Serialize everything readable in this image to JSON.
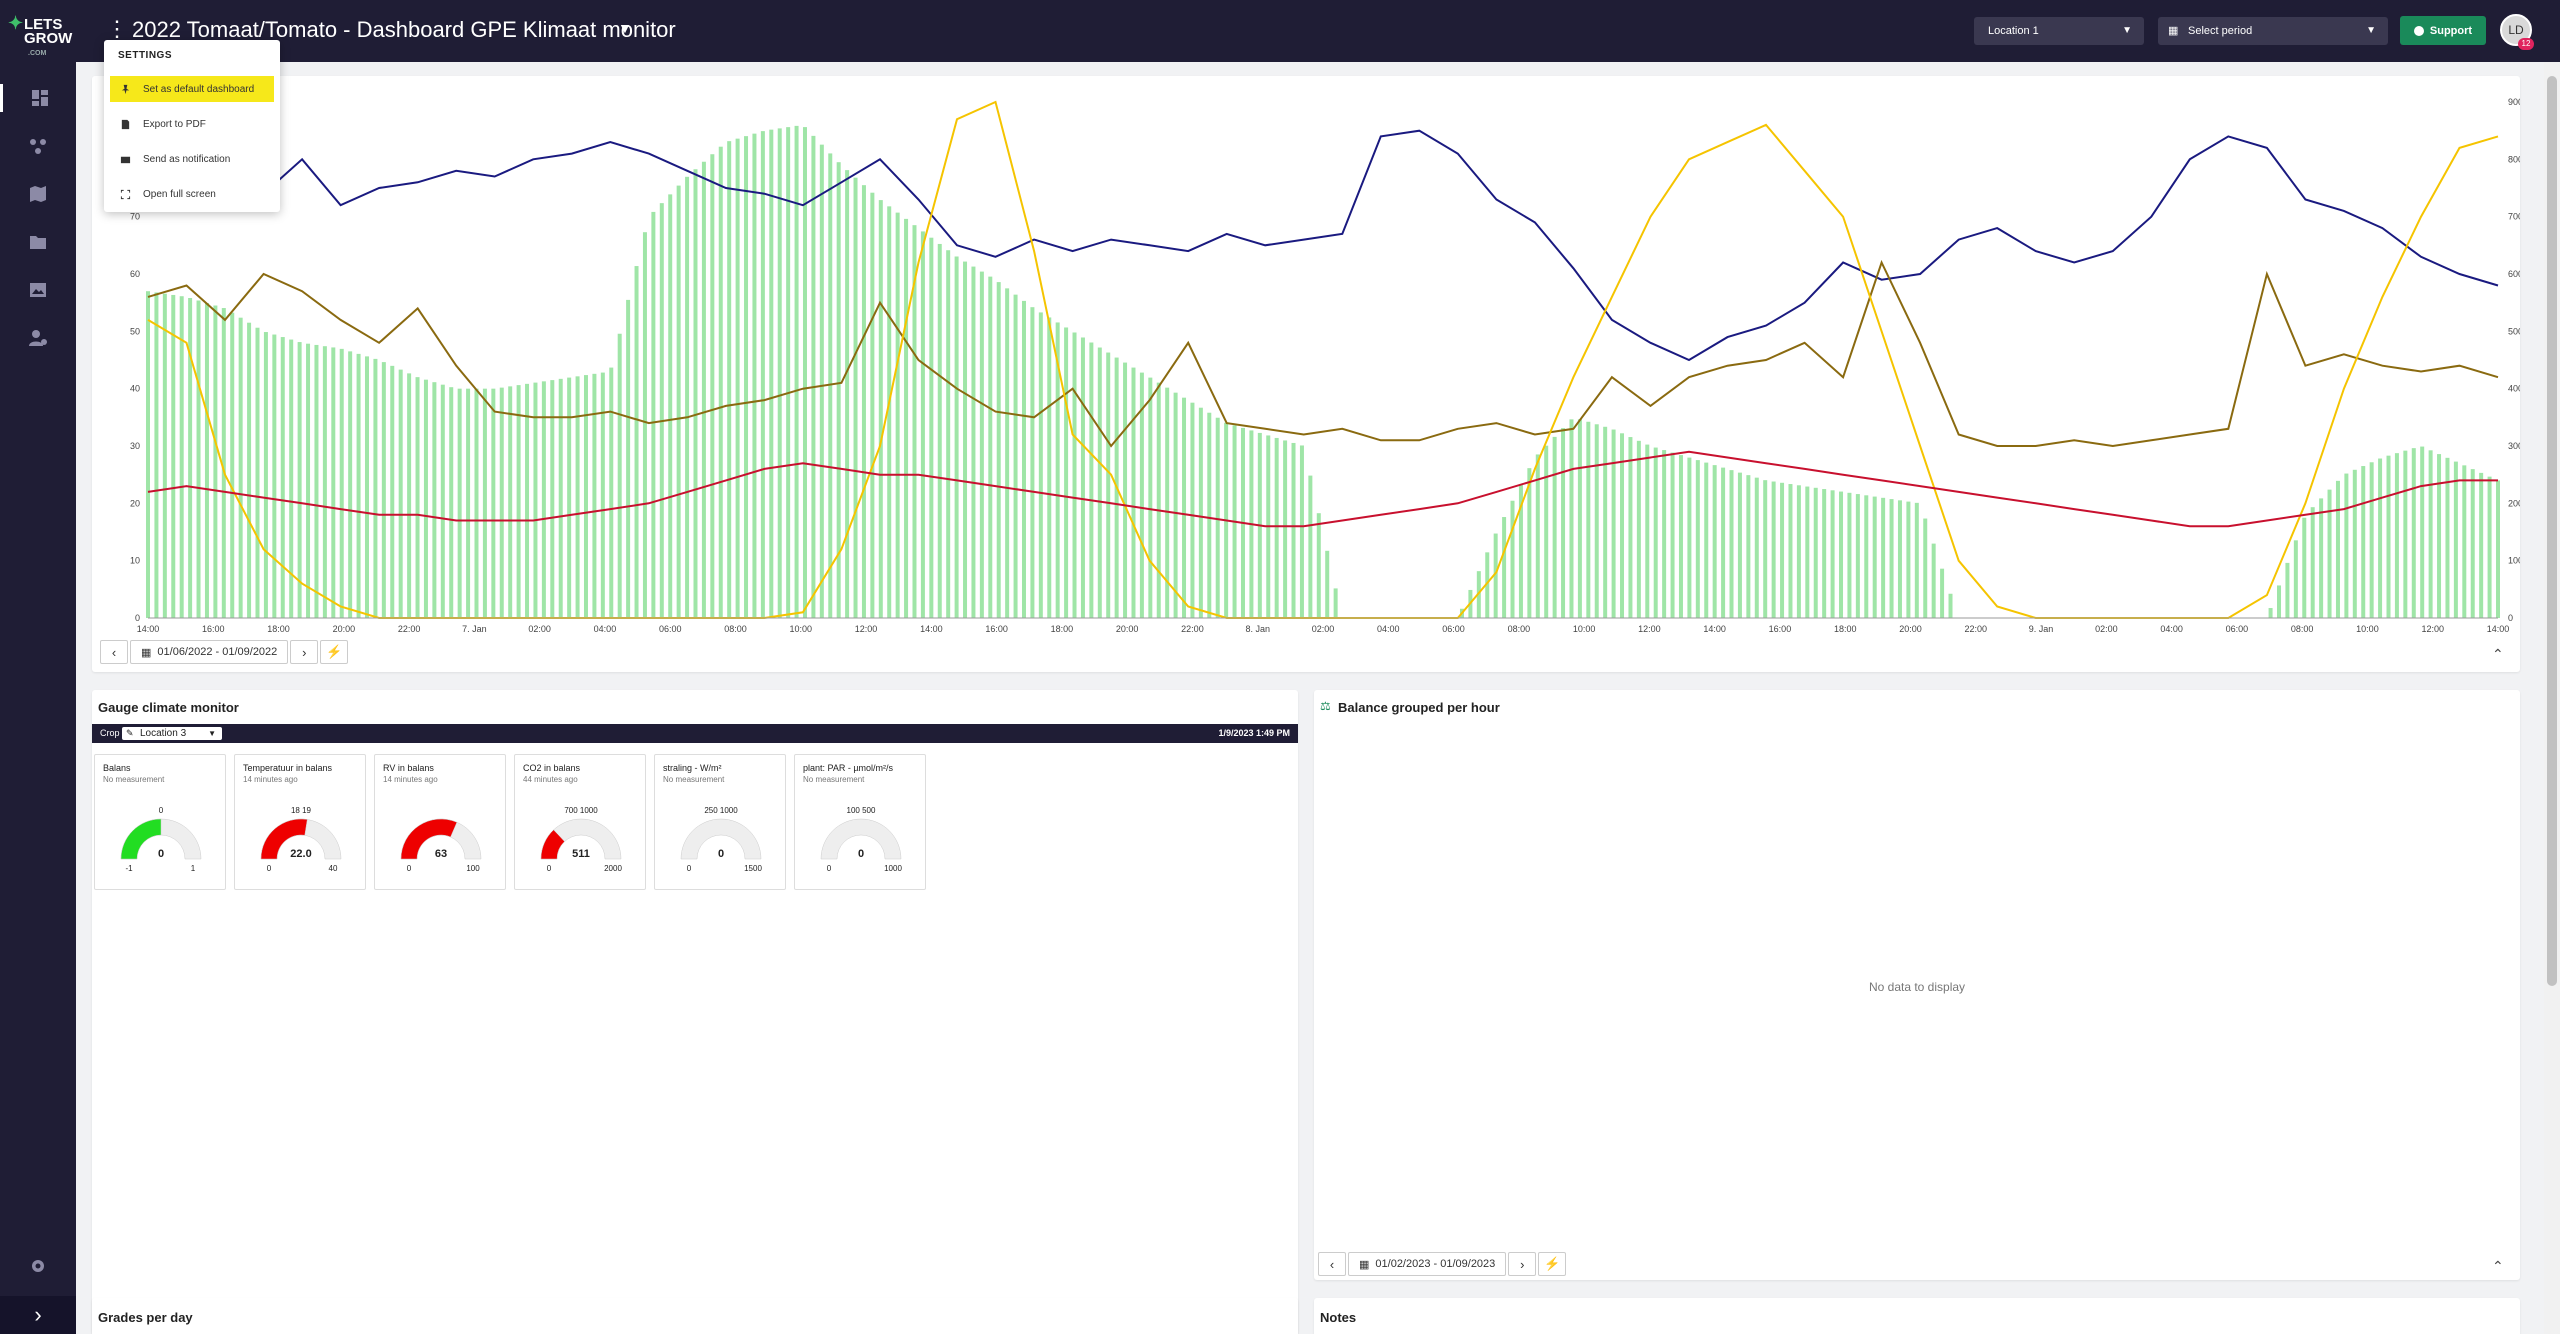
{
  "logo": {
    "line1": "LETS",
    "line2": "GROW",
    "line3": ".COM"
  },
  "header": {
    "title": "2022 Tomaat/Tomato - Dashboard GPE Klimaat monitor",
    "location": "Location 1",
    "period_placeholder": "Select period",
    "support_label": "Support",
    "avatar_initials": "LD",
    "notification_count": "12"
  },
  "settings_menu": {
    "title": "SETTINGS",
    "items": [
      "Set as default dashboard",
      "Export to PDF",
      "Send as notification",
      "Open full screen"
    ]
  },
  "climate_chart": {
    "date_range": "01/06/2022 - 01/09/2022"
  },
  "chart_data": {
    "type": "line",
    "left_axis": {
      "ticks": [
        "0",
        "10",
        "20",
        "30",
        "40",
        "50",
        "60",
        "70",
        "80"
      ],
      "ylim": [
        0,
        90
      ]
    },
    "right_axis": {
      "ticks": [
        "0",
        "100",
        "200",
        "300",
        "400",
        "500",
        "600",
        "700",
        "800",
        "900"
      ],
      "ylim": [
        0,
        900
      ]
    },
    "x_ticks": [
      "14:00",
      "16:00",
      "18:00",
      "20:00",
      "22:00",
      "7. Jan",
      "02:00",
      "04:00",
      "06:00",
      "08:00",
      "10:00",
      "12:00",
      "14:00",
      "16:00",
      "18:00",
      "20:00",
      "22:00",
      "8. Jan",
      "02:00",
      "04:00",
      "06:00",
      "08:00",
      "10:00",
      "12:00",
      "14:00",
      "16:00",
      "18:00",
      "20:00",
      "22:00",
      "9. Jan",
      "02:00",
      "04:00",
      "06:00",
      "08:00",
      "10:00",
      "12:00",
      "14:00"
    ],
    "series": [
      {
        "color": "#1a1a80",
        "axis": "left",
        "values": [
          77,
          72,
          76,
          74,
          80,
          72,
          75,
          76,
          78,
          77,
          80,
          81,
          83,
          81,
          78,
          75,
          74,
          72,
          76,
          80,
          73,
          65,
          63,
          66,
          64,
          66,
          65,
          64,
          67,
          65,
          66,
          67,
          84,
          85,
          81,
          73,
          69,
          61,
          52,
          48,
          45,
          49,
          51,
          55,
          62,
          59,
          60,
          66,
          68,
          64,
          62,
          64,
          70,
          80,
          84,
          82,
          73,
          71,
          68,
          63,
          60,
          58
        ]
      },
      {
        "color": "#8a6a10",
        "axis": "left",
        "values": [
          56,
          58,
          52,
          60,
          57,
          52,
          48,
          54,
          44,
          36,
          35,
          35,
          36,
          34,
          35,
          37,
          38,
          40,
          41,
          55,
          45,
          40,
          36,
          35,
          40,
          30,
          38,
          48,
          34,
          33,
          32,
          33,
          31,
          31,
          33,
          34,
          32,
          33,
          42,
          37,
          42,
          44,
          45,
          48,
          42,
          62,
          48,
          32,
          30,
          30,
          31,
          30,
          31,
          32,
          33,
          60,
          44,
          46,
          44,
          43,
          44,
          42
        ]
      },
      {
        "color": "#f5c400",
        "axis": "right",
        "values": [
          520,
          480,
          250,
          120,
          60,
          20,
          0,
          0,
          0,
          0,
          0,
          0,
          0,
          0,
          0,
          0,
          0,
          10,
          120,
          300,
          620,
          870,
          900,
          640,
          320,
          250,
          100,
          20,
          0,
          0,
          0,
          0,
          0,
          0,
          0,
          80,
          260,
          420,
          560,
          700,
          800,
          830,
          860,
          780,
          700,
          500,
          300,
          100,
          20,
          0,
          0,
          0,
          0,
          0,
          0,
          40,
          200,
          400,
          560,
          700,
          820,
          840
        ]
      },
      {
        "color": "#c8102e",
        "axis": "left",
        "values": [
          22,
          23,
          22,
          21,
          20,
          19,
          18,
          18,
          17,
          17,
          17,
          18,
          19,
          20,
          22,
          24,
          26,
          27,
          26,
          25,
          25,
          24,
          23,
          22,
          21,
          20,
          19,
          18,
          17,
          16,
          16,
          17,
          18,
          19,
          20,
          22,
          24,
          26,
          27,
          28,
          29,
          28,
          27,
          26,
          25,
          24,
          23,
          22,
          21,
          20,
          19,
          18,
          17,
          16,
          16,
          17,
          18,
          19,
          21,
          23,
          24,
          24
        ]
      },
      {
        "color": "#7fdc8a",
        "axis": "right",
        "kind": "bar",
        "values": [
          570,
          560,
          540,
          500,
          480,
          470,
          450,
          420,
          400,
          400,
          410,
          420,
          430,
          700,
          770,
          830,
          850,
          860,
          790,
          730,
          680,
          630,
          590,
          540,
          500,
          460,
          420,
          380,
          340,
          320,
          300,
          0,
          0,
          0,
          0,
          150,
          280,
          350,
          330,
          300,
          280,
          260,
          240,
          230,
          220,
          210,
          200,
          0,
          0,
          0,
          0,
          0,
          0,
          0,
          0,
          0,
          180,
          250,
          280,
          300,
          270,
          240
        ]
      }
    ]
  },
  "gauge_panel": {
    "title": "Gauge climate monitor",
    "crop_label": "Crop",
    "location": "Location 3",
    "timestamp": "1/9/2023 1:49 PM",
    "gauges": [
      {
        "title": "Balans",
        "subtitle": "No measurement",
        "value": "0",
        "min": "-1",
        "max": "1",
        "top": "0",
        "color": "#22dd22",
        "fraction": 0.5
      },
      {
        "title": "Temperatuur in balans",
        "subtitle": "14 minutes ago",
        "value": "22.0",
        "min": "0",
        "max": "40",
        "top": "18 19",
        "color": "#ee0000",
        "fraction": 0.55
      },
      {
        "title": "RV in balans",
        "subtitle": "14 minutes ago",
        "value": "63",
        "min": "0",
        "max": "100",
        "top": "",
        "color": "#ee0000",
        "fraction": 0.63
      },
      {
        "title": "CO2 in balans",
        "subtitle": "44 minutes ago",
        "value": "511",
        "min": "0",
        "max": "2000",
        "top": "700 1000",
        "color": "#ee0000",
        "fraction": 0.26
      },
      {
        "title": "straling - W/m²",
        "subtitle": "No measurement",
        "value": "0",
        "min": "0",
        "max": "1500",
        "top": "250 1000",
        "color": "#dddddd",
        "fraction": 0
      },
      {
        "title": "plant: PAR - µmol/m²/s",
        "subtitle": "No measurement",
        "value": "0",
        "min": "0",
        "max": "1000",
        "top": "100 500",
        "color": "#dddddd",
        "fraction": 0
      }
    ]
  },
  "balance_panel": {
    "title": "Balance grouped per hour",
    "empty_text": "No data to display",
    "date_range": "01/02/2023 - 01/09/2023"
  },
  "grades_panel": {
    "title": "Grades per day"
  },
  "notes_panel": {
    "title": "Notes"
  }
}
